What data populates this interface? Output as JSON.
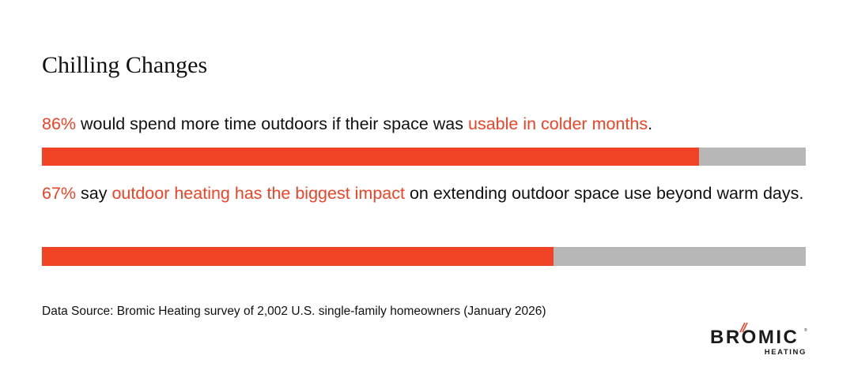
{
  "title": "Chilling Changes",
  "statements": [
    {
      "stat": "86%",
      "text_a": " would spend more time outdoors if their space was ",
      "highlight": "usable in colder months",
      "text_b": "."
    },
    {
      "stat": "67%",
      "text_a": " say ",
      "highlight": "outdoor heating has the biggest impact",
      "text_b": " on extending outdoor space use beyond warm days."
    }
  ],
  "source": "Data Source: Bromic Heating survey of 2,002 U.S. single-family homeowners (January 2026)",
  "logo": {
    "word": "BROMIC",
    "sub": "HEATING",
    "registered": "®"
  },
  "colors": {
    "accent": "#f04225",
    "track": "#b7b7b7",
    "text": "#111111"
  },
  "chart_data": {
    "type": "bar",
    "orientation": "horizontal",
    "title": "Chilling Changes",
    "categories": [
      "Would spend more time outdoors if their space was usable in colder months",
      "Say outdoor heating has the biggest impact on extending outdoor space use beyond warm days"
    ],
    "values": [
      86,
      67
    ],
    "unit": "%",
    "xlim": [
      0,
      100
    ],
    "grid": false,
    "legend": null,
    "source": "Bromic Heating survey of 2,002 U.S. single-family homeowners (January 2026)",
    "bar_widths_pct": [
      "86%",
      "67%"
    ]
  }
}
